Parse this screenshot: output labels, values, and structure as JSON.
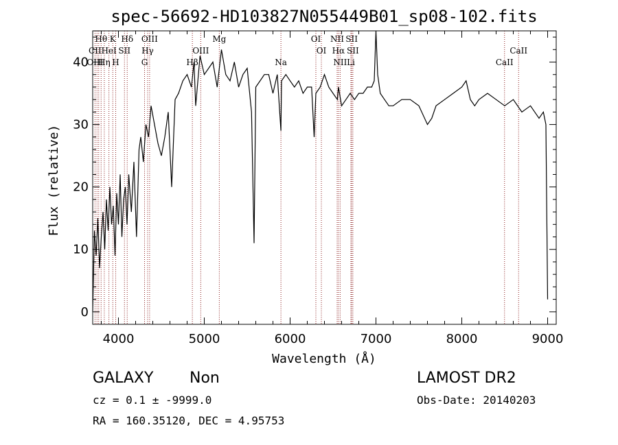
{
  "chart_data": {
    "type": "line",
    "title": "spec-56692-HD103827N055449B01_sp08-102.fits",
    "xlabel": "Wavelength (Å)",
    "ylabel": "Flux (relative)",
    "xlim": [
      3700,
      9100
    ],
    "ylim": [
      -2,
      45
    ],
    "xticks": [
      4000,
      5000,
      6000,
      7000,
      8000,
      9000
    ],
    "yticks": [
      0,
      10,
      20,
      30,
      40
    ],
    "grid": false,
    "series": [
      {
        "x": [
          3700,
          3720,
          3740,
          3760,
          3780,
          3800,
          3820,
          3840,
          3860,
          3880,
          3900,
          3920,
          3940,
          3960,
          3980,
          4000,
          4020,
          4040,
          4060,
          4080,
          4100,
          4120,
          4150,
          4180,
          4210,
          4240,
          4260,
          4290,
          4320,
          4350,
          4380,
          4420,
          4460,
          4500,
          4540,
          4580,
          4620,
          4660,
          4700,
          4750,
          4800,
          4850,
          4880,
          4900,
          4950,
          5000,
          5050,
          5100,
          5150,
          5200,
          5250,
          5300,
          5350,
          5400,
          5450,
          5500,
          5550,
          5580,
          5600,
          5650,
          5700,
          5750,
          5800,
          5850,
          5893,
          5900,
          5950,
          6000,
          6050,
          6100,
          6150,
          6200,
          6250,
          6280,
          6300,
          6350,
          6400,
          6450,
          6500,
          6550,
          6563,
          6600,
          6650,
          6700,
          6750,
          6800,
          6850,
          6900,
          6950,
          6980,
          7000,
          7020,
          7050,
          7100,
          7150,
          7200,
          7300,
          7400,
          7500,
          7600,
          7650,
          7700,
          7800,
          7900,
          8000,
          8050,
          8100,
          8150,
          8200,
          8300,
          8400,
          8500,
          8600,
          8700,
          8800,
          8900,
          8950,
          8980,
          9000
        ],
        "values": [
          0,
          13,
          9,
          15,
          7,
          12,
          16,
          10,
          18,
          13,
          20,
          14,
          17,
          9,
          19,
          14,
          22,
          12,
          18,
          20,
          14,
          22,
          16,
          24,
          12,
          26,
          28,
          24,
          30,
          28,
          33,
          30,
          27,
          25,
          28,
          32,
          20,
          34,
          35,
          37,
          38,
          36,
          40,
          33,
          41,
          38,
          39,
          40,
          36,
          42,
          38,
          37,
          40,
          36,
          38,
          39,
          32,
          11,
          36,
          37,
          38,
          38,
          35,
          38,
          29,
          37,
          38,
          37,
          36,
          37,
          35,
          36,
          36,
          28,
          35,
          36,
          38,
          36,
          35,
          34,
          36,
          33,
          34,
          35,
          34,
          35,
          35,
          36,
          36,
          37,
          45,
          38,
          35,
          34,
          33,
          33,
          34,
          34,
          33,
          30,
          31,
          33,
          34,
          35,
          36,
          37,
          34,
          33,
          34,
          35,
          34,
          33,
          34,
          32,
          33,
          31,
          32,
          30,
          2
        ]
      }
    ],
    "line_markers": [
      {
        "label": "Hθ",
        "x": 3798,
        "row": 1
      },
      {
        "label": "CII",
        "x": 3727,
        "row": 2
      },
      {
        "label": "OIII",
        "x": 3727,
        "row": 3
      },
      {
        "label": "K",
        "x": 3934,
        "row": 1
      },
      {
        "label": "HeI",
        "x": 3889,
        "row": 2
      },
      {
        "label": "Hη",
        "x": 3835,
        "row": 3
      },
      {
        "label": "Hδ",
        "x": 4102,
        "row": 1
      },
      {
        "label": "SII",
        "x": 4070,
        "row": 2
      },
      {
        "label": "H",
        "x": 3968,
        "row": 3
      },
      {
        "label": "OIII",
        "x": 4363,
        "row": 1
      },
      {
        "label": "Hγ",
        "x": 4340,
        "row": 2
      },
      {
        "label": "G",
        "x": 4304,
        "row": 3
      },
      {
        "label": "OIII",
        "x": 4959,
        "row": 2
      },
      {
        "label": "Hβ",
        "x": 4861,
        "row": 3
      },
      {
        "label": "Mg",
        "x": 5175,
        "row": 1
      },
      {
        "label": "Na",
        "x": 5893,
        "row": 3
      },
      {
        "label": "OI",
        "x": 6300,
        "row": 1
      },
      {
        "label": "OI",
        "x": 6364,
        "row": 2
      },
      {
        "label": "NII",
        "x": 6548,
        "row": 1
      },
      {
        "label": "SII",
        "x": 6717,
        "row": 1
      },
      {
        "label": "Hα",
        "x": 6563,
        "row": 2
      },
      {
        "label": "SII",
        "x": 6731,
        "row": 2
      },
      {
        "label": "NII",
        "x": 6583,
        "row": 3
      },
      {
        "label": "Li",
        "x": 6708,
        "row": 3
      },
      {
        "label": "CaII",
        "x": 8662,
        "row": 2
      },
      {
        "label": "CaII",
        "x": 8498,
        "row": 3
      }
    ],
    "line_marker_positions": [
      3727,
      3750,
      3770,
      3798,
      3835,
      3889,
      3934,
      3968,
      4070,
      4102,
      4304,
      4340,
      4363,
      4861,
      4959,
      5175,
      5893,
      6300,
      6364,
      6548,
      6563,
      6583,
      6708,
      6717,
      6731,
      8498,
      8662
    ],
    "marker_color": "#8b1a1a"
  },
  "info": {
    "class": "GALAXY",
    "subclass": "Non",
    "survey": "LAMOST DR2",
    "cz": "cz = 0.1 ± -9999.0",
    "obs_date": "Obs-Date: 20140203",
    "radec": "RA = 160.35120, DEC =    4.95753"
  }
}
